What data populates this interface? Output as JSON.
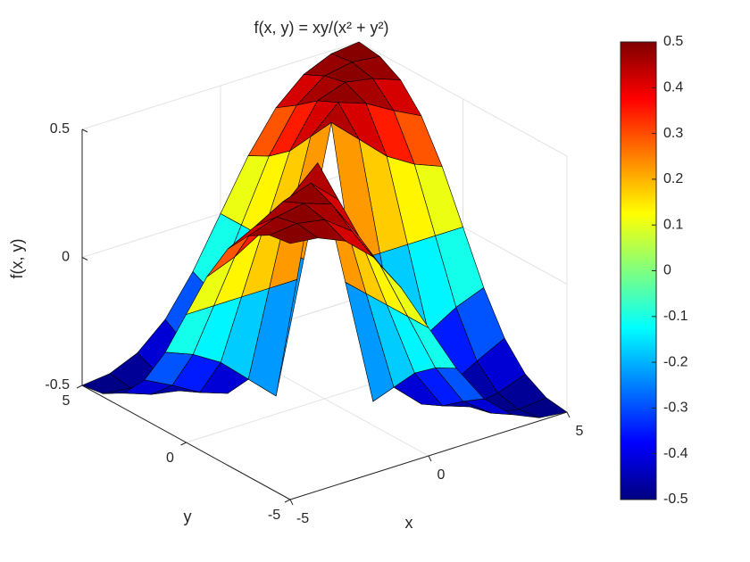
{
  "chart_data": {
    "type": "surface",
    "title": "f(x, y) = xy/(x² + y²)",
    "xlabel": "x",
    "ylabel": "y",
    "zlabel": "f(x, y)",
    "x": [
      -5,
      -4,
      -3,
      -2,
      -1,
      0,
      1,
      2,
      3,
      4,
      5
    ],
    "y": [
      -5,
      -4,
      -3,
      -2,
      -1,
      0,
      1,
      2,
      3,
      4,
      5
    ],
    "z": [
      [
        0.5,
        0.488,
        0.441,
        0.345,
        0.192,
        0,
        -0.192,
        -0.345,
        -0.441,
        -0.488,
        -0.5
      ],
      [
        0.488,
        0.5,
        0.48,
        0.4,
        0.235,
        0,
        -0.235,
        -0.4,
        -0.48,
        -0.5,
        -0.488
      ],
      [
        0.441,
        0.48,
        0.5,
        0.462,
        0.3,
        0,
        -0.3,
        -0.462,
        -0.5,
        -0.48,
        -0.441
      ],
      [
        0.345,
        0.4,
        0.462,
        0.5,
        0.4,
        0,
        -0.4,
        -0.5,
        -0.462,
        -0.4,
        -0.345
      ],
      [
        0.192,
        0.235,
        0.3,
        0.4,
        0.5,
        0,
        -0.5,
        -0.4,
        -0.3,
        -0.235,
        -0.192
      ],
      [
        0,
        0,
        0,
        0,
        0,
        null,
        0,
        0,
        0,
        0,
        0
      ],
      [
        -0.192,
        -0.235,
        -0.3,
        -0.4,
        -0.5,
        0,
        0.5,
        0.4,
        0.3,
        0.235,
        0.192
      ],
      [
        -0.345,
        -0.4,
        -0.462,
        -0.5,
        -0.4,
        0,
        0.4,
        0.5,
        0.462,
        0.4,
        0.345
      ],
      [
        -0.441,
        -0.48,
        -0.5,
        -0.462,
        -0.3,
        0,
        0.3,
        0.462,
        0.5,
        0.48,
        0.441
      ],
      [
        -0.488,
        -0.5,
        -0.48,
        -0.4,
        -0.235,
        0,
        0.235,
        0.4,
        0.48,
        0.5,
        0.488
      ],
      [
        -0.5,
        -0.488,
        -0.441,
        -0.345,
        -0.192,
        0,
        0.192,
        0.345,
        0.441,
        0.488,
        0.5
      ]
    ],
    "xlim": [
      -5,
      5
    ],
    "ylim": [
      -5,
      5
    ],
    "zlim": [
      -0.5,
      0.5
    ],
    "xticks": [
      -5,
      0,
      5
    ],
    "yticks": [
      -5,
      0,
      5
    ],
    "zticks": [
      -0.5,
      0,
      0.5
    ],
    "colormap": "jet",
    "clim": [
      -0.5,
      0.5
    ],
    "colorbar_ticks": [
      -0.5,
      -0.4,
      -0.3,
      -0.2,
      -0.1,
      0,
      0.1,
      0.2,
      0.3,
      0.4,
      0.5
    ],
    "grid": true
  }
}
